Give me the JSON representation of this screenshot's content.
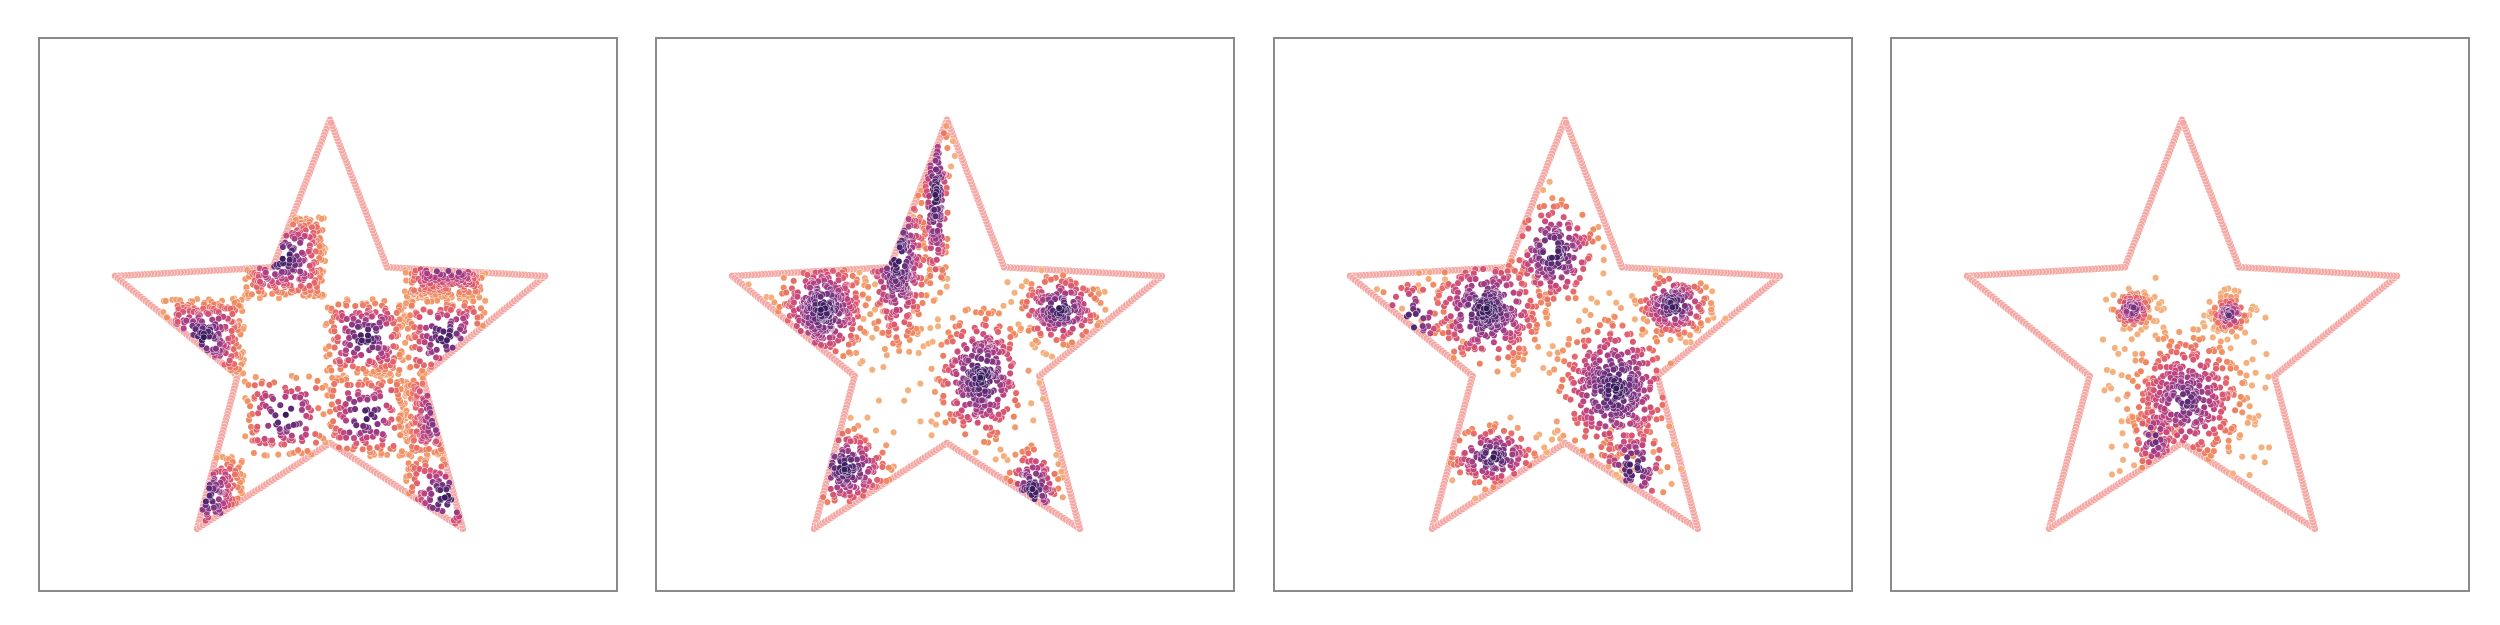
{
  "figure": {
    "title": "",
    "boundary_color": "#f4a7a3",
    "colormap": [
      "#2e1a55",
      "#5a2a74",
      "#8e3a86",
      "#c1447f",
      "#e3606c",
      "#f08a5f",
      "#f4b07d"
    ]
  },
  "chart_data": [
    {
      "type": "scatter",
      "title": "",
      "xlim": [
        -1,
        1
      ],
      "ylim": [
        -1,
        1
      ],
      "grid": false,
      "density_color": "#2e1a55",
      "clusters": [
        {
          "shape": "rect",
          "x": [
            -0.38,
            -0.2
          ],
          "y": [
            0.46,
            0.84
          ],
          "n": 150
        },
        {
          "shape": "rect",
          "x": [
            -0.38,
            -0.02
          ],
          "y": [
            0.1,
            0.46
          ],
          "n": 240
        },
        {
          "shape": "rect",
          "x": [
            -0.38,
            -0.02
          ],
          "y": [
            -0.6,
            -0.24
          ],
          "n": 120
        },
        {
          "shape": "rect",
          "x": [
            -0.02,
            0.33
          ],
          "y": [
            -0.6,
            -0.24
          ],
          "n": 160
        },
        {
          "shape": "rect",
          "x": [
            0.33,
            0.69
          ],
          "y": [
            0.1,
            0.46
          ],
          "n": 170
        },
        {
          "shape": "rect",
          "x": [
            0.33,
            0.69
          ],
          "y": [
            -0.6,
            -0.24
          ],
          "n": 140
        },
        {
          "shape": "rect",
          "x": [
            -0.74,
            -0.38
          ],
          "y": [
            -0.24,
            0.1
          ],
          "n": 200
        },
        {
          "shape": "rect",
          "x": [
            -0.02,
            0.33
          ],
          "y": [
            -0.24,
            0.1
          ],
          "n": 200
        },
        {
          "shape": "rect",
          "x": [
            0.33,
            0.69
          ],
          "y": [
            -0.24,
            0.1
          ],
          "n": 130
        },
        {
          "shape": "rect",
          "x": [
            -0.74,
            -0.38
          ],
          "y": [
            -0.95,
            -0.6
          ],
          "n": 100
        },
        {
          "shape": "rect",
          "x": [
            0.33,
            0.69
          ],
          "y": [
            -0.95,
            -0.6
          ],
          "n": 80
        }
      ]
    },
    {
      "type": "scatter",
      "title": "",
      "xlim": [
        -1,
        1
      ],
      "ylim": [
        -1,
        1
      ],
      "grid": false,
      "density_color": "#2e1a55",
      "clusters": [
        {
          "shape": "blob",
          "x": [
            -0.05,
            0.03
          ],
          "y": [
            0.55,
            0.22
          ],
          "n": 160
        },
        {
          "shape": "blob",
          "x": [
            -0.22,
            0.07
          ],
          "y": [
            0.28,
            0.2
          ],
          "n": 260
        },
        {
          "shape": "blob",
          "x": [
            -0.55,
            0.1
          ],
          "y": [
            0.05,
            0.12
          ],
          "n": 320
        },
        {
          "shape": "blob",
          "x": [
            0.15,
            0.1
          ],
          "y": [
            -0.25,
            0.15
          ],
          "n": 320
        },
        {
          "shape": "blob",
          "x": [
            0.5,
            0.09
          ],
          "y": [
            0.05,
            0.08
          ],
          "n": 200
        },
        {
          "shape": "blob",
          "x": [
            -0.45,
            0.1
          ],
          "y": [
            -0.65,
            0.09
          ],
          "n": 160
        },
        {
          "shape": "blob",
          "x": [
            0.38,
            0.06
          ],
          "y": [
            -0.75,
            0.1
          ],
          "n": 90
        }
      ]
    },
    {
      "type": "scatter",
      "title": "",
      "xlim": [
        -1,
        1
      ],
      "ylim": [
        -1,
        1
      ],
      "grid": false,
      "density_color": "#2e1a55",
      "clusters": [
        {
          "shape": "blob",
          "x": [
            -0.05,
            0.1
          ],
          "y": [
            0.3,
            0.12
          ],
          "n": 200
        },
        {
          "shape": "blob",
          "x": [
            -0.35,
            0.13
          ],
          "y": [
            0.05,
            0.13
          ],
          "n": 330
        },
        {
          "shape": "blob",
          "x": [
            0.22,
            0.13
          ],
          "y": [
            -0.3,
            0.16
          ],
          "n": 380
        },
        {
          "shape": "blob",
          "x": [
            0.48,
            0.08
          ],
          "y": [
            0.07,
            0.07
          ],
          "n": 180
        },
        {
          "shape": "blob",
          "x": [
            -0.32,
            0.1
          ],
          "y": [
            -0.6,
            0.07
          ],
          "n": 150
        },
        {
          "shape": "blob",
          "x": [
            0.3,
            0.08
          ],
          "y": [
            -0.65,
            0.1
          ],
          "n": 80
        },
        {
          "shape": "blob",
          "x": [
            -0.68,
            0.08
          ],
          "y": [
            0.0,
            0.1
          ],
          "n": 40
        }
      ]
    },
    {
      "type": "scatter",
      "title": "",
      "xlim": [
        -1,
        1
      ],
      "ylim": [
        -1,
        1
      ],
      "grid": false,
      "density_color": "#5a2a74",
      "clusters": [
        {
          "shape": "blob",
          "x": [
            -0.22,
            0.05
          ],
          "y": [
            0.05,
            0.045
          ],
          "n": 100
        },
        {
          "shape": "blob",
          "x": [
            0.21,
            0.045
          ],
          "y": [
            0.03,
            0.045
          ],
          "n": 100
        },
        {
          "shape": "blob",
          "x": [
            0.02,
            0.15
          ],
          "y": [
            -0.35,
            0.17
          ],
          "n": 420
        },
        {
          "shape": "blob",
          "x": [
            -0.12,
            0.06
          ],
          "y": [
            -0.52,
            0.1
          ],
          "n": 80
        }
      ]
    }
  ]
}
